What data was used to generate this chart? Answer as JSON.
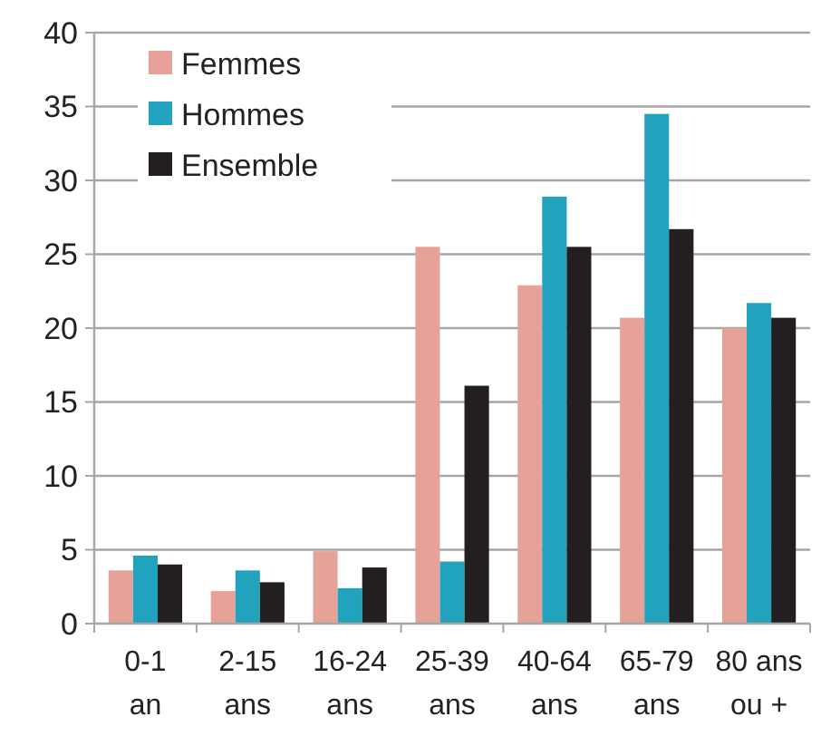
{
  "chart_data": {
    "type": "bar",
    "categories": [
      "0-1\nan",
      "2-15\nans",
      "16-24\nans",
      "25-39\nans",
      "40-64\nans",
      "65-79\nans",
      "80 ans\nou +"
    ],
    "series": [
      {
        "name": "Femmes",
        "color": "#e6a298",
        "values": [
          3.6,
          2.2,
          4.9,
          25.5,
          22.9,
          20.7,
          20.0
        ]
      },
      {
        "name": "Hommes",
        "color": "#22a3bd",
        "values": [
          4.6,
          3.6,
          2.4,
          4.2,
          28.9,
          34.5,
          21.7
        ]
      },
      {
        "name": "Ensemble",
        "color": "#231f20",
        "values": [
          4.0,
          2.8,
          3.8,
          16.1,
          25.5,
          26.7,
          20.7
        ]
      }
    ],
    "ylim": [
      0,
      40
    ],
    "yticks": [
      0,
      5,
      10,
      15,
      20,
      25,
      30,
      35,
      40
    ],
    "grid": "y",
    "legend": "top left"
  }
}
